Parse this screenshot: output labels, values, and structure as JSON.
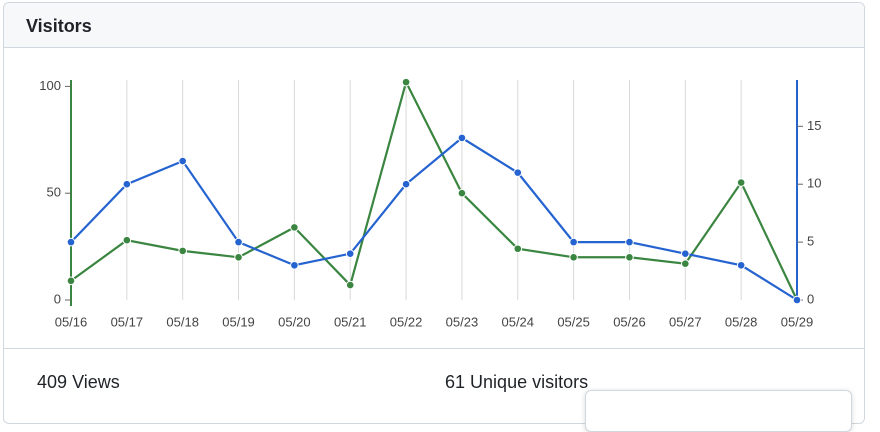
{
  "header": {
    "title": "Visitors"
  },
  "chart_data": {
    "type": "line",
    "categories": [
      "05/16",
      "05/17",
      "05/18",
      "05/19",
      "05/20",
      "05/21",
      "05/22",
      "05/23",
      "05/24",
      "05/25",
      "05/26",
      "05/27",
      "05/28",
      "05/29"
    ],
    "series": [
      {
        "color": "#3a8540",
        "axis": "y",
        "values": [
          9,
          28,
          23,
          20,
          34,
          7,
          102,
          50,
          24,
          20,
          20,
          17,
          55,
          0
        ]
      },
      {
        "color": "#2563d0",
        "axis": "y2",
        "values": [
          5,
          10,
          12,
          5,
          3,
          4,
          10,
          14,
          11,
          5,
          5,
          4,
          3,
          0
        ]
      }
    ],
    "ylim": [
      0,
      103
    ],
    "yticks": [
      0,
      50,
      100
    ],
    "y2lim": [
      0,
      19
    ],
    "y2ticks": [
      0,
      5,
      10,
      15
    ],
    "grid": true
  },
  "summary": [
    {
      "value": "409",
      "label": "Views"
    },
    {
      "value": "61",
      "label": "Unique visitors"
    }
  ]
}
